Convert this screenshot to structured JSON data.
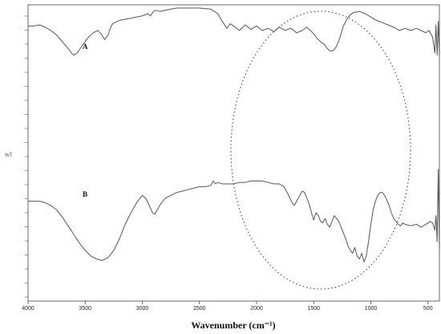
{
  "chart_data": {
    "type": "line",
    "xlabel": "Wavenumber (cm⁻¹)",
    "ylabel": "%T",
    "xlim": [
      4000,
      400
    ],
    "x_ticks": [
      4000,
      3500,
      3000,
      2500,
      2000,
      1500,
      1000,
      500
    ],
    "grid": false,
    "y_tick_labels_visible": false,
    "annotation": "dotted ellipse highlighting ~2100–550 cm⁻¹ region",
    "series": [
      {
        "name": "A",
        "color": "#555555",
        "points": [
          [
            4000,
            84
          ],
          [
            3950,
            84
          ],
          [
            3900,
            85
          ],
          [
            3850,
            83
          ],
          [
            3800,
            80
          ],
          [
            3750,
            76
          ],
          [
            3700,
            70
          ],
          [
            3650,
            64
          ],
          [
            3620,
            60
          ],
          [
            3600,
            58
          ],
          [
            3570,
            60
          ],
          [
            3530,
            66
          ],
          [
            3480,
            73
          ],
          [
            3430,
            78
          ],
          [
            3390,
            80
          ],
          [
            3360,
            77
          ],
          [
            3330,
            72
          ],
          [
            3300,
            76
          ],
          [
            3280,
            82
          ],
          [
            3260,
            86
          ],
          [
            3200,
            89
          ],
          [
            3100,
            91
          ],
          [
            3000,
            93
          ],
          [
            2950,
            95
          ],
          [
            2930,
            93
          ],
          [
            2910,
            96
          ],
          [
            2890,
            98
          ],
          [
            2850,
            97
          ],
          [
            2800,
            98
          ],
          [
            2750,
            99
          ],
          [
            2700,
            100
          ],
          [
            2600,
            100
          ],
          [
            2500,
            100
          ],
          [
            2400,
            99
          ],
          [
            2340,
            95
          ],
          [
            2300,
            88
          ],
          [
            2260,
            82
          ],
          [
            2230,
            86
          ],
          [
            2200,
            84
          ],
          [
            2150,
            80
          ],
          [
            2100,
            85
          ],
          [
            2050,
            81
          ],
          [
            2000,
            84
          ],
          [
            1950,
            80
          ],
          [
            1900,
            82
          ],
          [
            1850,
            79
          ],
          [
            1800,
            83
          ],
          [
            1750,
            80
          ],
          [
            1700,
            82
          ],
          [
            1650,
            78
          ],
          [
            1600,
            80
          ],
          [
            1560,
            83
          ],
          [
            1530,
            80
          ],
          [
            1500,
            77
          ],
          [
            1470,
            73
          ],
          [
            1440,
            70
          ],
          [
            1410,
            68
          ],
          [
            1380,
            64
          ],
          [
            1360,
            62
          ],
          [
            1330,
            62
          ],
          [
            1300,
            66
          ],
          [
            1270,
            74
          ],
          [
            1240,
            84
          ],
          [
            1210,
            90
          ],
          [
            1180,
            94
          ],
          [
            1150,
            96
          ],
          [
            1100,
            97
          ],
          [
            1050,
            95
          ],
          [
            1000,
            92
          ],
          [
            950,
            89
          ],
          [
            900,
            87
          ],
          [
            850,
            85
          ],
          [
            800,
            83
          ],
          [
            750,
            80
          ],
          [
            700,
            82
          ],
          [
            650,
            80
          ],
          [
            600,
            82
          ],
          [
            560,
            80
          ],
          [
            520,
            78
          ],
          [
            490,
            80
          ],
          [
            460,
            74
          ],
          [
            440,
            60
          ],
          [
            430,
            85
          ],
          [
            420,
            58
          ],
          [
            410,
            88
          ],
          [
            400,
            58
          ]
        ]
      },
      {
        "name": "B",
        "color": "#555555",
        "points": [
          [
            4000,
            58
          ],
          [
            3950,
            58
          ],
          [
            3900,
            58
          ],
          [
            3850,
            57
          ],
          [
            3800,
            55
          ],
          [
            3750,
            52
          ],
          [
            3700,
            47
          ],
          [
            3650,
            41
          ],
          [
            3600,
            35
          ],
          [
            3550,
            29
          ],
          [
            3500,
            24
          ],
          [
            3450,
            20
          ],
          [
            3400,
            18
          ],
          [
            3350,
            17
          ],
          [
            3300,
            19
          ],
          [
            3250,
            24
          ],
          [
            3200,
            32
          ],
          [
            3150,
            42
          ],
          [
            3100,
            50
          ],
          [
            3050,
            57
          ],
          [
            3000,
            62
          ],
          [
            2970,
            60
          ],
          [
            2940,
            55
          ],
          [
            2910,
            50
          ],
          [
            2890,
            49
          ],
          [
            2870,
            52
          ],
          [
            2840,
            56
          ],
          [
            2800,
            60
          ],
          [
            2750,
            62
          ],
          [
            2700,
            64
          ],
          [
            2650,
            65
          ],
          [
            2600,
            66
          ],
          [
            2550,
            67
          ],
          [
            2500,
            68
          ],
          [
            2450,
            68
          ],
          [
            2400,
            69
          ],
          [
            2380,
            72
          ],
          [
            2360,
            70
          ],
          [
            2340,
            71
          ],
          [
            2300,
            70
          ],
          [
            2250,
            70
          ],
          [
            2200,
            70
          ],
          [
            2150,
            71
          ],
          [
            2100,
            71
          ],
          [
            2050,
            72
          ],
          [
            2000,
            72
          ],
          [
            1950,
            72
          ],
          [
            1900,
            71
          ],
          [
            1850,
            70
          ],
          [
            1800,
            70
          ],
          [
            1760,
            68
          ],
          [
            1720,
            62
          ],
          [
            1690,
            57
          ],
          [
            1670,
            55
          ],
          [
            1650,
            58
          ],
          [
            1620,
            62
          ],
          [
            1600,
            65
          ],
          [
            1580,
            64
          ],
          [
            1560,
            60
          ],
          [
            1540,
            56
          ],
          [
            1520,
            50
          ],
          [
            1500,
            45
          ],
          [
            1480,
            50
          ],
          [
            1460,
            48
          ],
          [
            1440,
            44
          ],
          [
            1420,
            43
          ],
          [
            1400,
            46
          ],
          [
            1380,
            42
          ],
          [
            1360,
            40
          ],
          [
            1340,
            44
          ],
          [
            1320,
            48
          ],
          [
            1300,
            46
          ],
          [
            1280,
            44
          ],
          [
            1260,
            40
          ],
          [
            1240,
            36
          ],
          [
            1220,
            32
          ],
          [
            1200,
            27
          ],
          [
            1180,
            24
          ],
          [
            1160,
            22
          ],
          [
            1140,
            26
          ],
          [
            1120,
            20
          ],
          [
            1100,
            18
          ],
          [
            1080,
            22
          ],
          [
            1060,
            16
          ],
          [
            1040,
            20
          ],
          [
            1020,
            30
          ],
          [
            1000,
            42
          ],
          [
            980,
            52
          ],
          [
            960,
            58
          ],
          [
            940,
            62
          ],
          [
            920,
            64
          ],
          [
            900,
            64
          ],
          [
            880,
            62
          ],
          [
            860,
            59
          ],
          [
            840,
            55
          ],
          [
            820,
            50
          ],
          [
            800,
            46
          ],
          [
            780,
            44
          ],
          [
            760,
            42
          ],
          [
            740,
            41
          ],
          [
            720,
            43
          ],
          [
            700,
            42
          ],
          [
            650,
            41
          ],
          [
            600,
            42
          ],
          [
            560,
            40
          ],
          [
            520,
            42
          ],
          [
            480,
            44
          ],
          [
            460,
            43
          ],
          [
            440,
            38
          ],
          [
            430,
            48
          ],
          [
            420,
            30
          ],
          [
            410,
            80
          ],
          [
            400,
            25
          ]
        ]
      }
    ]
  }
}
